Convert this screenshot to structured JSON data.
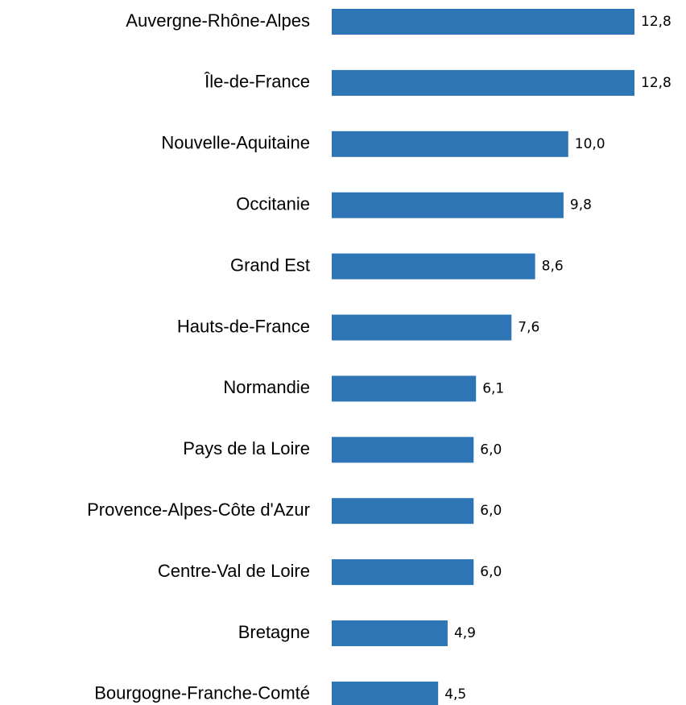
{
  "chart_data": {
    "type": "bar",
    "orientation": "horizontal",
    "categories": [
      "Auvergne-Rhône-Alpes",
      "Île-de-France",
      "Nouvelle-Aquitaine",
      "Occitanie",
      "Grand Est",
      "Hauts-de-France",
      "Normandie",
      "Pays de la Loire",
      "Provence-Alpes-Côte d'Azur",
      "Centre-Val de Loire",
      "Bretagne",
      "Bourgogne-Franche-Comté"
    ],
    "values": [
      12.8,
      12.8,
      10.0,
      9.8,
      8.6,
      7.6,
      6.1,
      6.0,
      6.0,
      6.0,
      4.9,
      4.5
    ],
    "value_labels": [
      "12,8",
      "12,8",
      "10,0",
      "9,8",
      "8,6",
      "7,6",
      "6,1",
      "6,0",
      "6,0",
      "6,0",
      "4,9",
      "4,5"
    ],
    "color": "#2e75b6"
  }
}
